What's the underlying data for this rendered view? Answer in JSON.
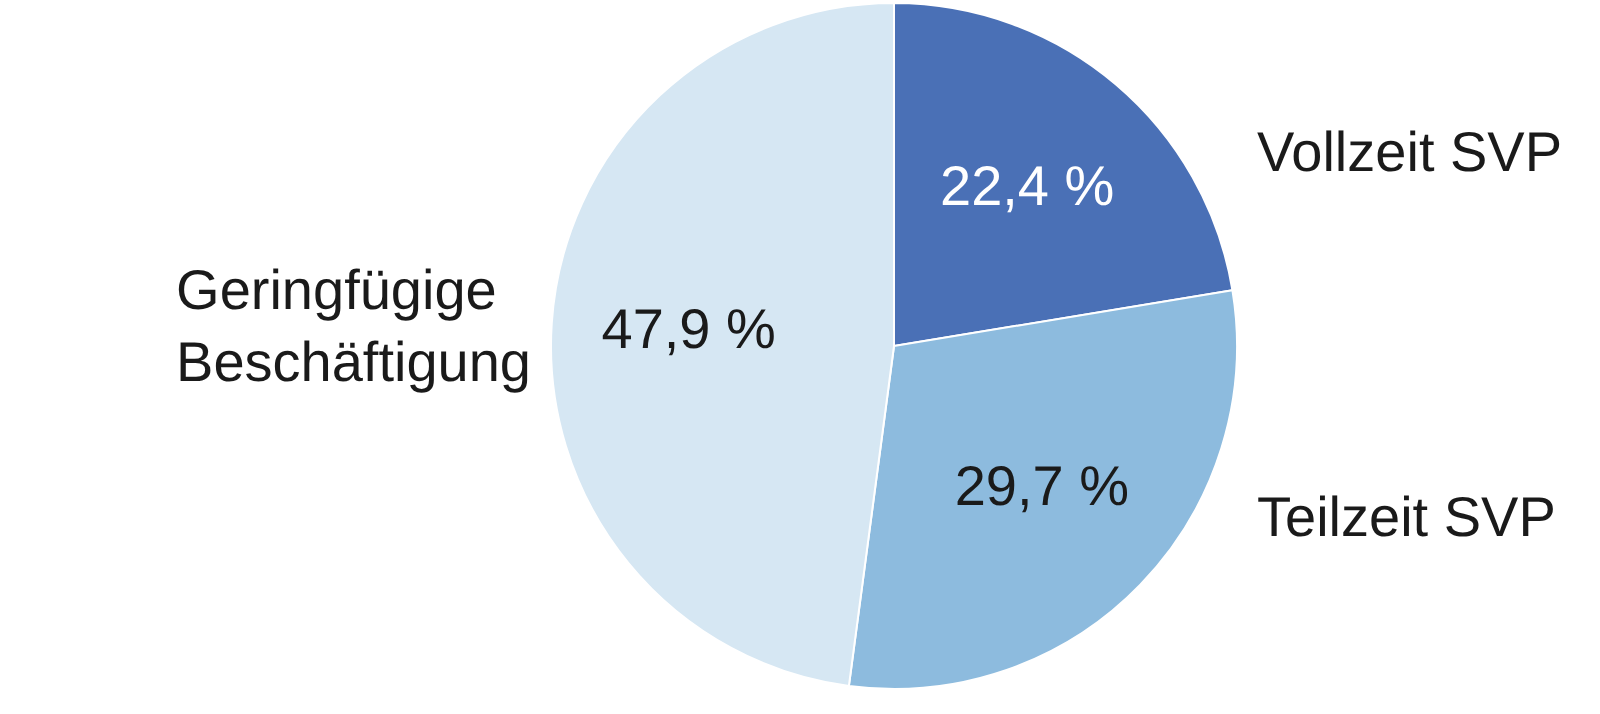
{
  "chart_data": {
    "type": "pie",
    "categories": [
      "Vollzeit SVP",
      "Teilzeit SVP",
      "Geringfügige Beschäftigung"
    ],
    "values": [
      22.4,
      29.7,
      47.9
    ],
    "colors": [
      "#4a70b6",
      "#8dbbde",
      "#d6e7f3"
    ],
    "value_labels": [
      "22,4 %",
      "29,7 %",
      "47,9 %"
    ]
  }
}
